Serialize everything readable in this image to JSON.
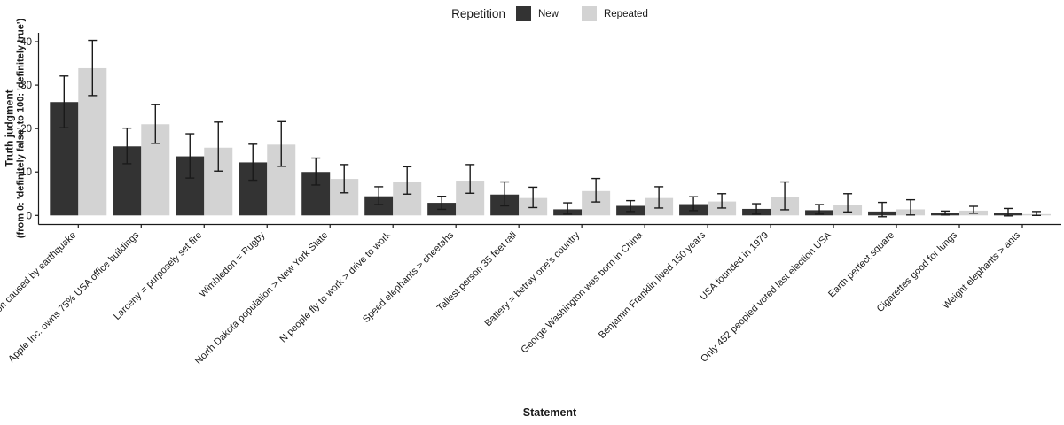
{
  "legend": {
    "title": "Repetition",
    "items": [
      {
        "label": "New",
        "color": "#333333"
      },
      {
        "label": "Repeated",
        "color": "#d3d3d3"
      }
    ]
  },
  "axes": {
    "x_title": "Statement",
    "y_title_line1": "Truth judgment",
    "y_title_line2": "(from 0: 'definitely false' to 100: 'definitely true')",
    "y_ticks": [
      0,
      10,
      20,
      30,
      40
    ]
  },
  "chart_data": {
    "type": "bar",
    "title": "",
    "xlabel": "Statement",
    "ylabel": "Truth judgment (from 0: 'definitely false' to 100: 'definitely true')",
    "ylim": [
      0,
      40
    ],
    "grid": false,
    "legend_position": "top-center",
    "legend_title": "Repetition",
    "error_bars": true,
    "categories": [
      "Monsoon caused by earthquake",
      "Apple Inc. owns 75% USA office buildings",
      "Larceny = purposely set fire",
      "Wimbledon = Rugby",
      "North Dakota population > New York State",
      "N people fly to work > drive to work",
      "Speed elephants > cheetahs",
      "Tallest person 35 feet tall",
      "Battery = betray one's country",
      "George Washington was born in China",
      "Benjamin Franklin lived 150 years",
      "USA founded in 1979",
      "Only 452 peopled voted last election USA",
      "Earth perfect square",
      "Cigarettes good for lungs",
      "Weight elephants > ants"
    ],
    "series": [
      {
        "name": "New",
        "color": "#333333",
        "values": [
          26.1,
          15.9,
          13.6,
          12.2,
          10.0,
          4.4,
          2.9,
          4.8,
          1.4,
          2.2,
          2.6,
          1.5,
          1.2,
          0.9,
          0.5,
          0.6
        ],
        "ci_low": [
          20.2,
          11.9,
          8.6,
          8.1,
          7.0,
          2.5,
          1.4,
          2.2,
          0.3,
          0.9,
          1.1,
          0.3,
          0.3,
          -0.3,
          0.1,
          -0.1
        ],
        "ci_high": [
          32.1,
          20.1,
          18.8,
          16.4,
          13.2,
          6.6,
          4.4,
          7.7,
          2.9,
          3.4,
          4.3,
          2.7,
          2.5,
          3.0,
          1.0,
          1.6
        ]
      },
      {
        "name": "Repeated",
        "color": "#d3d3d3",
        "values": [
          33.9,
          21.0,
          15.6,
          16.3,
          8.4,
          7.8,
          8.0,
          4.0,
          5.6,
          4.0,
          3.2,
          4.3,
          2.5,
          1.4,
          1.1,
          0.3
        ],
        "ci_low": [
          27.6,
          16.6,
          10.2,
          11.3,
          5.2,
          4.9,
          5.1,
          1.8,
          3.1,
          1.7,
          1.7,
          1.3,
          0.8,
          0.1,
          0.5,
          0.0
        ],
        "ci_high": [
          40.3,
          25.5,
          21.5,
          21.6,
          11.7,
          11.2,
          11.7,
          6.5,
          8.5,
          6.6,
          5.0,
          7.7,
          5.0,
          3.6,
          2.1,
          0.9
        ]
      }
    ]
  }
}
